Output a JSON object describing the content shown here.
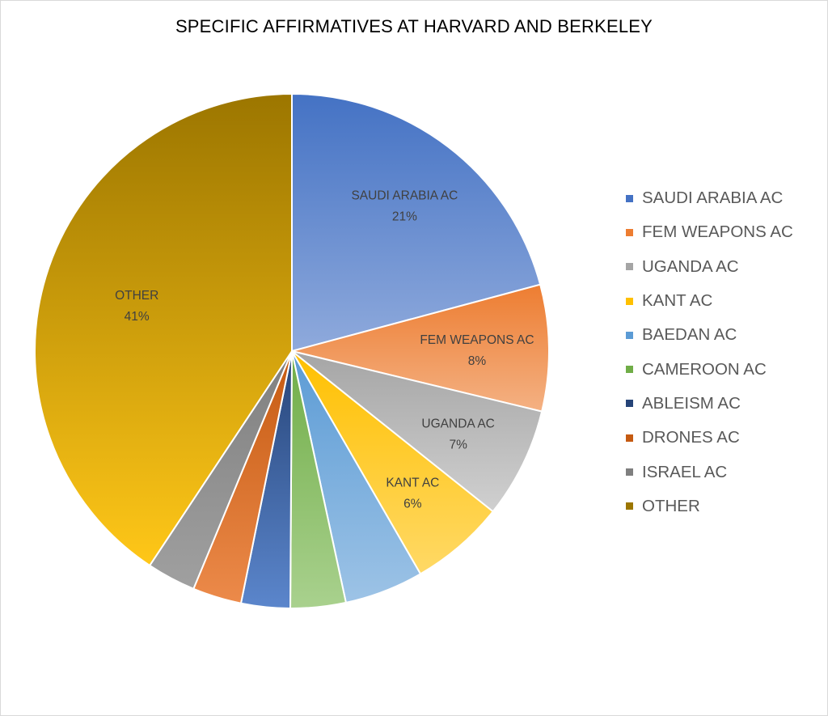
{
  "chart_data": {
    "type": "pie",
    "title": "SPECIFIC AFFIRMATIVES AT HARVARD AND BERKELEY",
    "legend_position": "right",
    "slices": [
      {
        "label": "SAUDI ARABIA AC",
        "value": 21,
        "percent_label": "21%",
        "color": "#4472C4",
        "light": "#8FAADC",
        "show_label": true
      },
      {
        "label": "FEM WEAPONS AC",
        "value": 8,
        "percent_label": "8%",
        "color": "#ED7D31",
        "light": "#F4B183",
        "show_label": true
      },
      {
        "label": "UGANDA AC",
        "value": 7,
        "percent_label": "7%",
        "color": "#A5A5A5",
        "light": "#D0D0D0",
        "show_label": true
      },
      {
        "label": "KANT AC",
        "value": 6,
        "percent_label": "6%",
        "color": "#FFC000",
        "light": "#FFD966",
        "show_label": true
      },
      {
        "label": "BAEDAN AC",
        "value": 5,
        "percent_label": "",
        "color": "#5B9BD5",
        "light": "#9DC3E6",
        "show_label": false
      },
      {
        "label": "CAMEROON AC",
        "value": 3.5,
        "percent_label": "",
        "color": "#70AD47",
        "light": "#A9D18E",
        "show_label": false
      },
      {
        "label": "ABLEISM AC",
        "value": 3.1,
        "percent_label": "",
        "color": "#264478",
        "light": "#5B86CC",
        "show_label": false
      },
      {
        "label": "DRONES AC",
        "value": 3.1,
        "percent_label": "",
        "color": "#C55A11",
        "light": "#EC8A4A",
        "show_label": false
      },
      {
        "label": "ISRAEL AC",
        "value": 3.1,
        "percent_label": "",
        "color": "#7F7F7F",
        "light": "#A0A0A0",
        "show_label": false
      },
      {
        "label": "OTHER",
        "value": 41,
        "percent_label": "41%",
        "color": "#9C7600",
        "light": "#FFC718",
        "show_label": true
      }
    ]
  }
}
